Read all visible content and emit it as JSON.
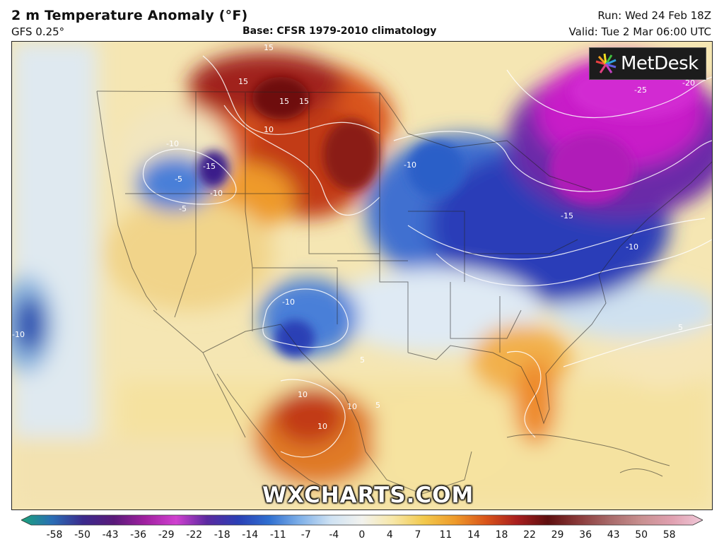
{
  "header": {
    "title": "2 m Temperature Anomaly (°F)",
    "model": "GFS 0.25°",
    "base": "Base: CFSR 1979-2010 climatology",
    "run": "Run: Wed 24 Feb 18Z",
    "valid": "Valid: Tue 2 Mar 06:00 UTC"
  },
  "logo": {
    "text": "MetDesk",
    "icon": "metdesk-logo-icon"
  },
  "watermark": "WXCHARTS.COM",
  "map": {
    "contour_labels": [
      "15",
      "15",
      "15",
      "15",
      "10",
      "-10",
      "-10",
      "-15",
      "-5",
      "-10",
      "-10",
      "-15",
      "-25",
      "-20",
      "-10",
      "-10",
      "10",
      "10",
      "5",
      "5",
      "5",
      "-5",
      "10"
    ]
  },
  "colorbar": {
    "ticks": [
      "-58",
      "-50",
      "-43",
      "-36",
      "-29",
      "-22",
      "-18",
      "-14",
      "-11",
      "-7",
      "-4",
      "0",
      "4",
      "7",
      "11",
      "14",
      "18",
      "22",
      "29",
      "36",
      "43",
      "50",
      "58"
    ],
    "colors": [
      "#1aa37a",
      "#2a6db5",
      "#3b2a8c",
      "#5a1a7a",
      "#a020a0",
      "#d040d0",
      "#5a2aa0",
      "#2a3fb5",
      "#2f6fd0",
      "#7fb0e8",
      "#cfe2f3",
      "#f2f2ee",
      "#f7e7a8",
      "#f2c94c",
      "#ee9a2a",
      "#d9541a",
      "#a81e1e",
      "#5e0f0f",
      "#8a3a3a",
      "#a86a6a",
      "#c89090",
      "#e0a0b0",
      "#f0c8d8"
    ]
  }
}
